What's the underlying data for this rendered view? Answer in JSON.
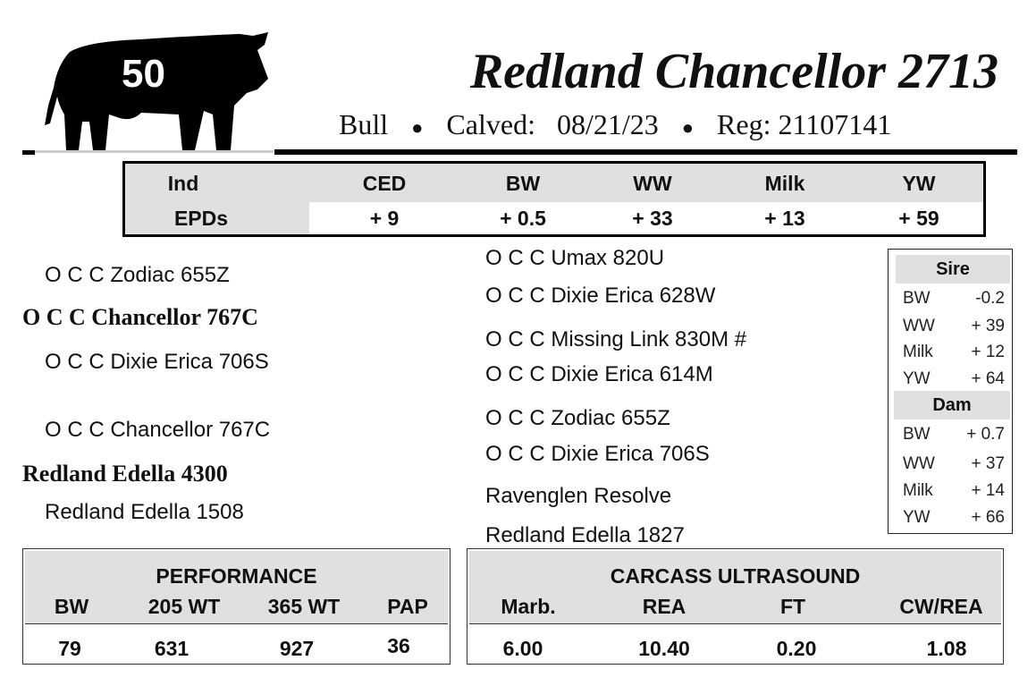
{
  "lot_number": "50",
  "title": "Redland Chancellor 2713",
  "subtitle": {
    "sex": "Bull",
    "calved_label": "Calved:",
    "calved": "08/21/23",
    "reg_label": "Reg:",
    "reg": "21107141"
  },
  "epds": {
    "row_label_1": "Ind",
    "row_label_2": "EPDs",
    "headers": [
      "CED",
      "BW",
      "WW",
      "Milk",
      "YW"
    ],
    "values": [
      "+ 9",
      "+ 0.5",
      "+ 33",
      "+ 13",
      "+ 59"
    ]
  },
  "pedigree": {
    "left": [
      "O C C Zodiac 655Z",
      "O C C Chancellor 767C",
      "O C C Dixie Erica 706S",
      "O C C Chancellor 767C",
      "Redland Edella 4300",
      "Redland Edella 1508"
    ],
    "right": [
      "O C C Umax 820U",
      "O C C Dixie Erica 628W",
      "O C C Missing Link 830M #",
      "O C C Dixie Erica 614M",
      "O C C Zodiac 655Z",
      "O C C Dixie Erica 706S",
      "Ravenglen Resolve",
      "Redland Edella 1827"
    ]
  },
  "sire": {
    "title": "Sire",
    "rows": [
      [
        "BW",
        "-0.2"
      ],
      [
        "WW",
        "+ 39"
      ],
      [
        "Milk",
        "+ 12"
      ],
      [
        "YW",
        "+ 64"
      ]
    ]
  },
  "dam": {
    "title": "Dam",
    "rows": [
      [
        "BW",
        "+ 0.7"
      ],
      [
        "WW",
        "+ 37"
      ],
      [
        "Milk",
        "+ 14"
      ],
      [
        "YW",
        "+ 66"
      ]
    ]
  },
  "performance": {
    "title": "PERFORMANCE",
    "headers": [
      "BW",
      "205 WT",
      "365 WT",
      "PAP"
    ],
    "values": [
      "79",
      "631",
      "927",
      "36"
    ]
  },
  "carcass": {
    "title": "CARCASS ULTRASOUND",
    "headers": [
      "Marb.",
      "REA",
      "FT",
      "CW/REA"
    ],
    "values": [
      "6.00",
      "10.40",
      "0.20",
      "1.08"
    ]
  }
}
